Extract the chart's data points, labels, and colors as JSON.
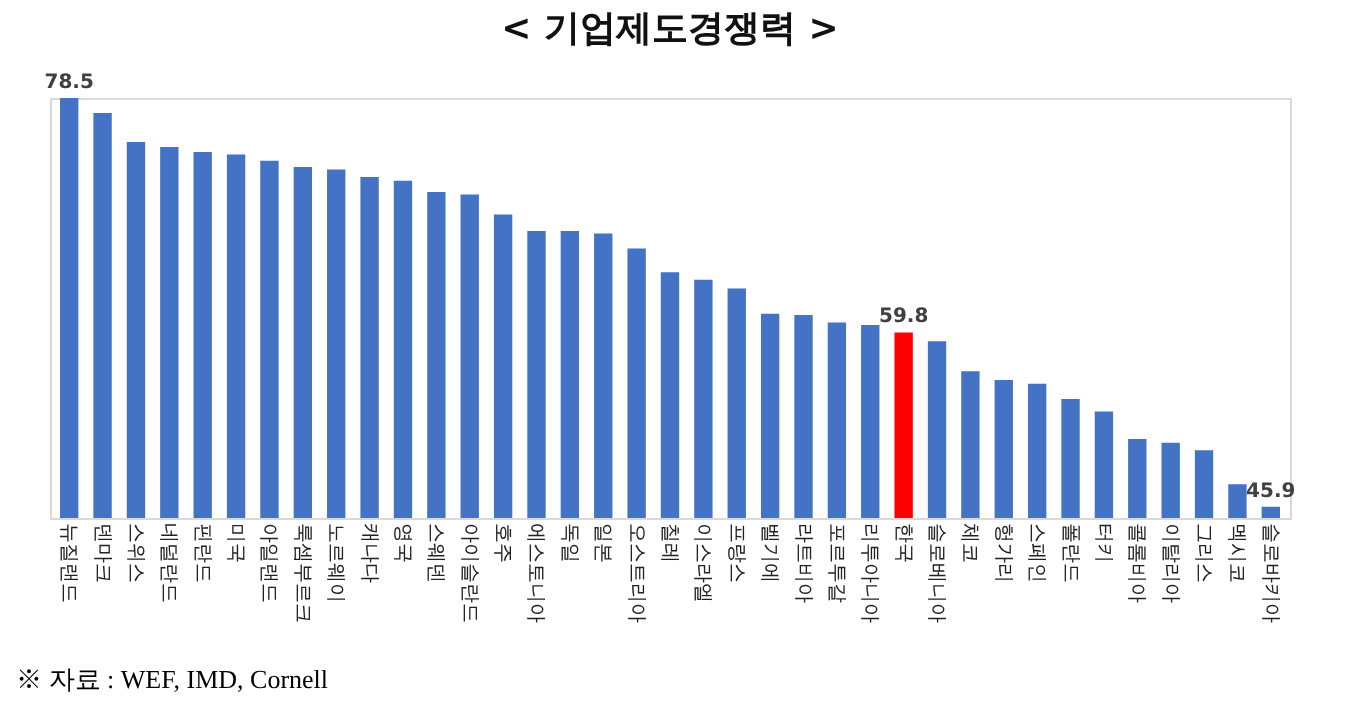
{
  "chart_data": {
    "type": "bar",
    "title": "< 기업제도경쟁력 >",
    "categories": [
      "뉴질랜드",
      "덴마크",
      "스위스",
      "네덜란드",
      "핀란드",
      "미국",
      "아일랜드",
      "룩셈부르크",
      "노르웨이",
      "캐나다",
      "영국",
      "스웨덴",
      "아이슬란드",
      "호주",
      "에스토니아",
      "독일",
      "일본",
      "오스트리아",
      "칠레",
      "이스라엘",
      "프랑스",
      "벨기에",
      "라트비아",
      "포르투갈",
      "리투아니아",
      "한국",
      "슬로베니아",
      "체코",
      "헝가리",
      "스페인",
      "폴란드",
      "터키",
      "콜롬비아",
      "이탈리아",
      "그리스",
      "멕시코",
      "슬로바키아"
    ],
    "values": [
      78.5,
      77.3,
      75.0,
      74.6,
      74.2,
      74.0,
      73.5,
      73.0,
      72.8,
      72.2,
      71.9,
      71.0,
      70.8,
      69.2,
      67.9,
      67.9,
      67.7,
      66.5,
      64.6,
      64.0,
      63.3,
      61.3,
      61.2,
      60.6,
      60.4,
      59.8,
      59.1,
      56.7,
      56.0,
      55.7,
      54.5,
      53.5,
      51.3,
      51.0,
      50.4,
      47.7,
      45.9
    ],
    "colors": [
      "#4472c4",
      "#4472c4",
      "#4472c4",
      "#4472c4",
      "#4472c4",
      "#4472c4",
      "#4472c4",
      "#4472c4",
      "#4472c4",
      "#4472c4",
      "#4472c4",
      "#4472c4",
      "#4472c4",
      "#4472c4",
      "#4472c4",
      "#4472c4",
      "#4472c4",
      "#4472c4",
      "#4472c4",
      "#4472c4",
      "#4472c4",
      "#4472c4",
      "#4472c4",
      "#4472c4",
      "#4472c4",
      "#ff0000",
      "#4472c4",
      "#4472c4",
      "#4472c4",
      "#4472c4",
      "#4472c4",
      "#4472c4",
      "#4472c4",
      "#4472c4",
      "#4472c4",
      "#4472c4",
      "#4472c4"
    ],
    "value_labels": [
      "78.5",
      null,
      null,
      null,
      null,
      null,
      null,
      null,
      null,
      null,
      null,
      null,
      null,
      null,
      null,
      null,
      null,
      null,
      null,
      null,
      null,
      null,
      null,
      null,
      null,
      "59.8",
      null,
      null,
      null,
      null,
      null,
      null,
      null,
      null,
      null,
      null,
      "45.9"
    ],
    "ylim": [
      45,
      78.5
    ],
    "annotations": [
      "※ 자료 : WEF, IMD, Cornell"
    ]
  }
}
